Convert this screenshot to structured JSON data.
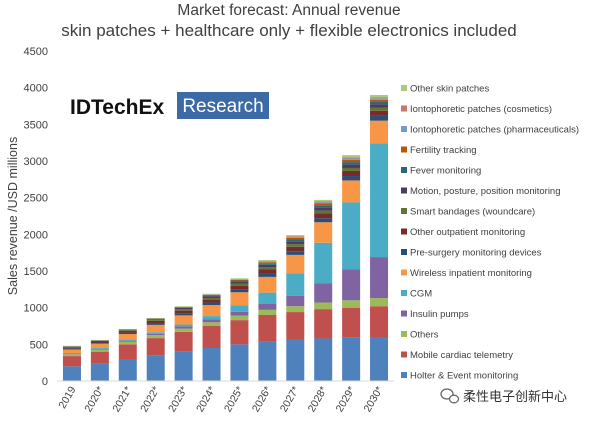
{
  "chart_data": {
    "type": "bar",
    "stacked": true,
    "title": "Market forecast: Annual revenue",
    "subtitle": "skin patches + healthcare only + flexible electronics included",
    "ylabel": "Sales revenue /USD millions",
    "ylim": [
      0,
      4500
    ],
    "yticks": [
      0,
      500,
      1000,
      1500,
      2000,
      2500,
      3000,
      3500,
      4000,
      4500
    ],
    "grid": false,
    "legend": "right",
    "categories": [
      "2019",
      "2020*",
      "2021*",
      "2022*",
      "2023*",
      "2024*",
      "2025*",
      "2026*",
      "2027*",
      "2028*",
      "2029*",
      "2030*"
    ],
    "series": [
      {
        "name": "Holter & Event monitoring",
        "color": "#4f81bd",
        "values": [
          200,
          240,
          300,
          345,
          400,
          450,
          500,
          540,
          560,
          580,
          590,
          600
        ]
      },
      {
        "name": "Mobile cardiac telemetry",
        "color": "#c0504d",
        "values": [
          140,
          160,
          200,
          240,
          270,
          300,
          330,
          360,
          380,
          400,
          410,
          420
        ]
      },
      {
        "name": "Others",
        "color": "#9bbb59",
        "values": [
          25,
          30,
          35,
          40,
          45,
          50,
          60,
          70,
          80,
          90,
          100,
          110
        ]
      },
      {
        "name": "Insulin pumps",
        "color": "#8064a2",
        "values": [
          10,
          10,
          15,
          20,
          30,
          40,
          55,
          80,
          140,
          260,
          420,
          560
        ]
      },
      {
        "name": "CGM",
        "color": "#4bacc6",
        "values": [
          5,
          10,
          15,
          20,
          25,
          45,
          85,
          155,
          310,
          555,
          915,
          1550
        ]
      },
      {
        "name": "Wireless inpatient monitoring",
        "color": "#f79646",
        "values": [
          50,
          60,
          75,
          100,
          125,
          150,
          180,
          215,
          250,
          280,
          300,
          310
        ]
      },
      {
        "name": "Pre-surgery monitoring devices",
        "color": "#2c4d75",
        "values": [
          15,
          15,
          20,
          25,
          30,
          35,
          40,
          45,
          50,
          55,
          60,
          65
        ]
      },
      {
        "name": "Other outpatient monitoring",
        "color": "#772c2a",
        "values": [
          15,
          20,
          25,
          30,
          35,
          40,
          50,
          55,
          60,
          65,
          70,
          70
        ]
      },
      {
        "name": "Smart bandages (woundcare)",
        "color": "#5f7530",
        "values": [
          5,
          5,
          10,
          15,
          20,
          22,
          25,
          30,
          35,
          38,
          40,
          40
        ]
      },
      {
        "name": "Motion, posture, position monitoring",
        "color": "#4d3b62",
        "values": [
          5,
          5,
          5,
          10,
          20,
          25,
          30,
          35,
          40,
          45,
          50,
          50
        ]
      },
      {
        "name": "Fever monitoring",
        "color": "#276a7c",
        "values": [
          0,
          0,
          5,
          5,
          5,
          10,
          15,
          20,
          25,
          28,
          30,
          30
        ]
      },
      {
        "name": "Fertility tracking",
        "color": "#b65708",
        "values": [
          0,
          0,
          0,
          5,
          5,
          8,
          10,
          15,
          20,
          25,
          30,
          30
        ]
      },
      {
        "name": "Iontophoretic patches (pharmaceuticals)",
        "color": "#729aca",
        "values": [
          0,
          0,
          0,
          0,
          0,
          3,
          5,
          8,
          12,
          15,
          20,
          20
        ]
      },
      {
        "name": "Iontophoretic patches (cosmetics)",
        "color": "#cd7371",
        "values": [
          0,
          0,
          0,
          0,
          0,
          2,
          5,
          7,
          10,
          12,
          15,
          15
        ]
      },
      {
        "name": "Other skin patches",
        "color": "#afc97a",
        "values": [
          10,
          5,
          5,
          5,
          10,
          10,
          10,
          15,
          18,
          22,
          30,
          30
        ]
      }
    ]
  },
  "logo": {
    "brand": "IDTechEx",
    "division": "Research",
    "division_color": "#3b6aa6"
  },
  "watermark": {
    "icon": "wechat-icon",
    "text": "柔性电子创新中心"
  }
}
